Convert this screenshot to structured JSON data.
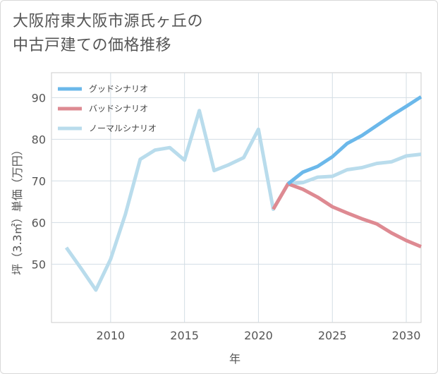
{
  "title": {
    "line1": "大阪府東大阪市源氏ヶ丘の",
    "line2": "中古戸建ての価格推移"
  },
  "chart_data": {
    "type": "line",
    "xlabel": "年",
    "ylabel": "坪（3.3㎡）単価（万円）",
    "xlim": [
      2006,
      2031
    ],
    "ylim": [
      36,
      96
    ],
    "xticks": [
      2010,
      2015,
      2020,
      2025,
      2030
    ],
    "yticks": [
      50,
      60,
      70,
      80,
      90
    ],
    "grid": true,
    "legend_position": "top-left",
    "series": [
      {
        "name": "グッドシナリオ",
        "color": "#6bb8ea",
        "x": [
          2022,
          2023,
          2024,
          2025,
          2026,
          2027,
          2028,
          2029,
          2030,
          2031
        ],
        "y": [
          69.3,
          72.1,
          73.5,
          75.8,
          79.0,
          80.9,
          83.3,
          85.7,
          87.9,
          90.2
        ]
      },
      {
        "name": "バッドシナリオ",
        "color": "#de8a92",
        "x": [
          2021,
          2022,
          2023,
          2024,
          2025,
          2026,
          2027,
          2028,
          2029,
          2030,
          2031
        ],
        "y": [
          63.2,
          69.3,
          68.0,
          66.1,
          63.8,
          62.3,
          60.9,
          59.7,
          57.5,
          55.7,
          54.2
        ]
      },
      {
        "name": "ノーマルシナリオ",
        "color": "#b9dcec",
        "x": [
          2007,
          2008,
          2009,
          2010,
          2011,
          2012,
          2013,
          2014,
          2015,
          2016,
          2017,
          2018,
          2019,
          2020,
          2021,
          2022,
          2023,
          2024,
          2025,
          2026,
          2027,
          2028,
          2029,
          2030,
          2031
        ],
        "y": [
          54.0,
          49.0,
          43.8,
          51.2,
          62.0,
          75.2,
          77.4,
          78.0,
          75.0,
          86.9,
          72.5,
          73.9,
          75.6,
          82.4,
          63.2,
          69.3,
          69.6,
          70.9,
          71.1,
          72.7,
          73.2,
          74.2,
          74.6,
          76.0,
          76.4
        ]
      }
    ]
  }
}
